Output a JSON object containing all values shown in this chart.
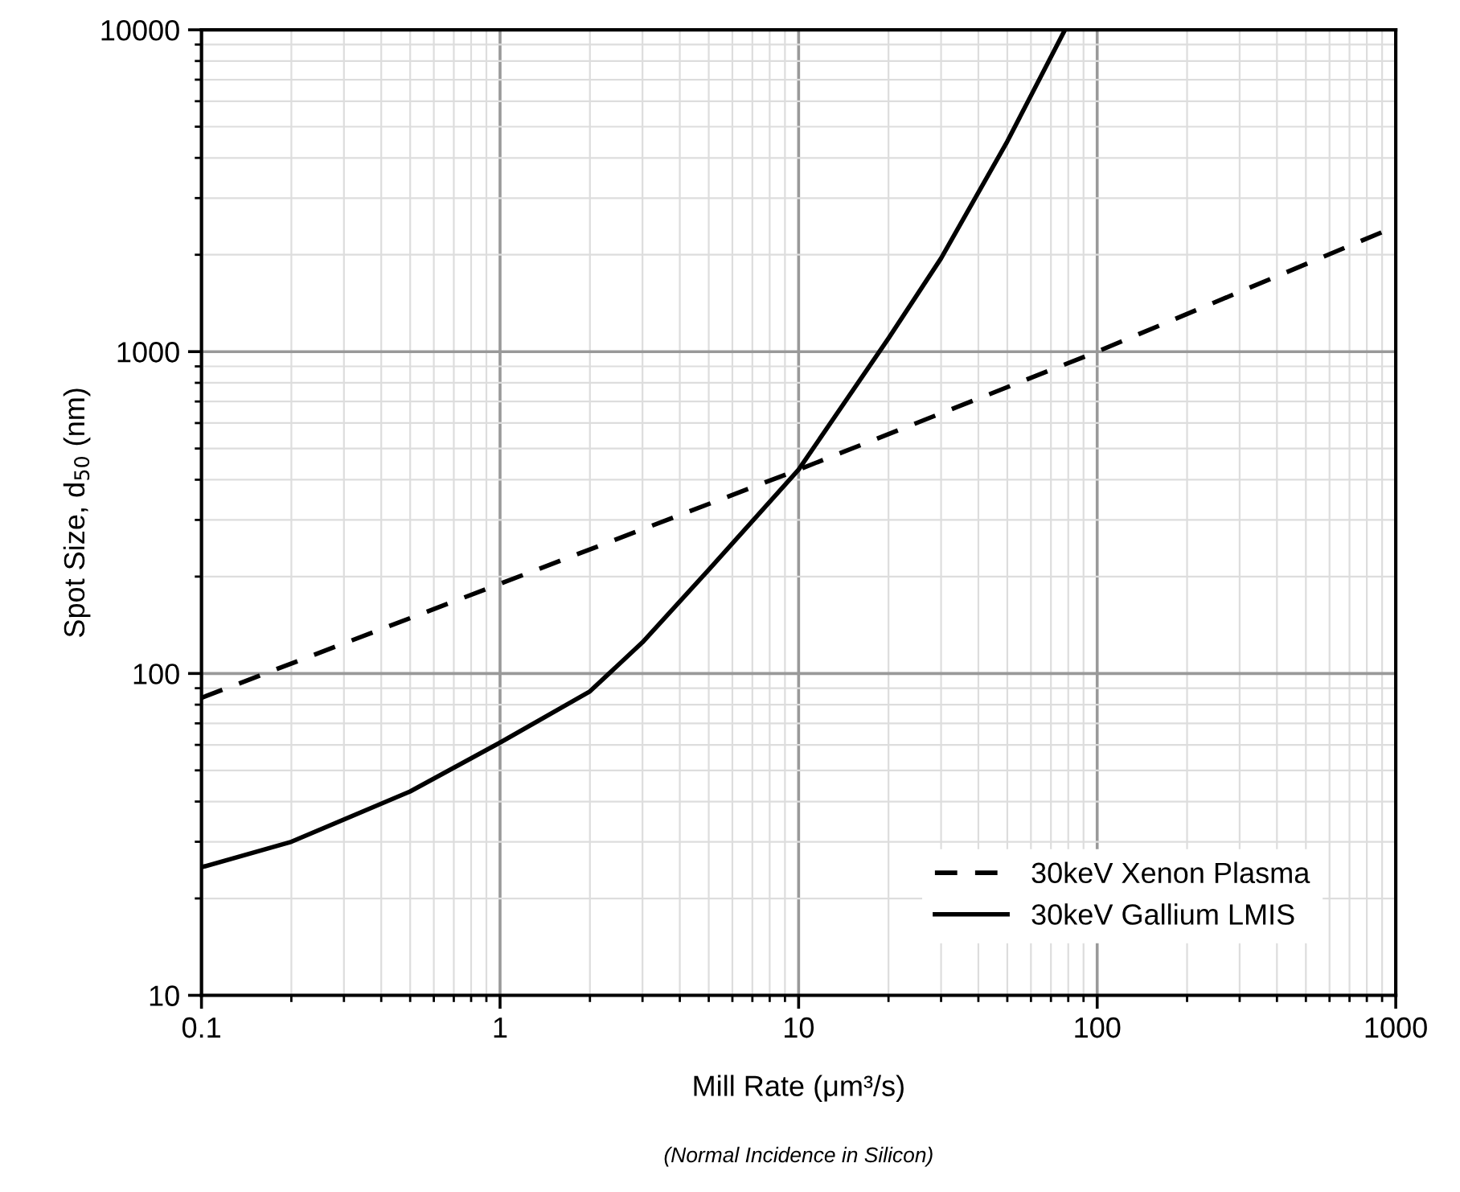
{
  "chart_data": {
    "type": "line",
    "xlabel": "Mill Rate (μm³/s)",
    "ylabel": "Spot Size, d$_{50}$ (nm)",
    "annotations": [
      "(Normal Incidence in Silicon)"
    ],
    "log": "xy",
    "xlim": [
      0.1,
      1000
    ],
    "ylim": [
      10,
      10000
    ],
    "xticks": [
      0.1,
      1,
      10,
      100,
      1000
    ],
    "yticks": [
      10,
      100,
      1000,
      10000
    ],
    "grid": true,
    "legend": "bottom right",
    "marker": "none",
    "series": [
      {
        "name": "30keV Xenon Plasma",
        "color": "#000000",
        "line_style": "dashed",
        "x": [
          0.1,
          1,
          10,
          100,
          1000
        ],
        "values": [
          84,
          190,
          430,
          1000,
          2450
        ]
      },
      {
        "name": "30keV Gallium LMIS",
        "color": "#000000",
        "line_style": "solid",
        "x": [
          0.1,
          0.2,
          0.5,
          1,
          2,
          3,
          5,
          10,
          20,
          30,
          50,
          78
        ],
        "values": [
          25,
          30,
          43,
          61,
          88,
          125,
          210,
          430,
          1100,
          1950,
          4500,
          10000
        ]
      }
    ]
  }
}
